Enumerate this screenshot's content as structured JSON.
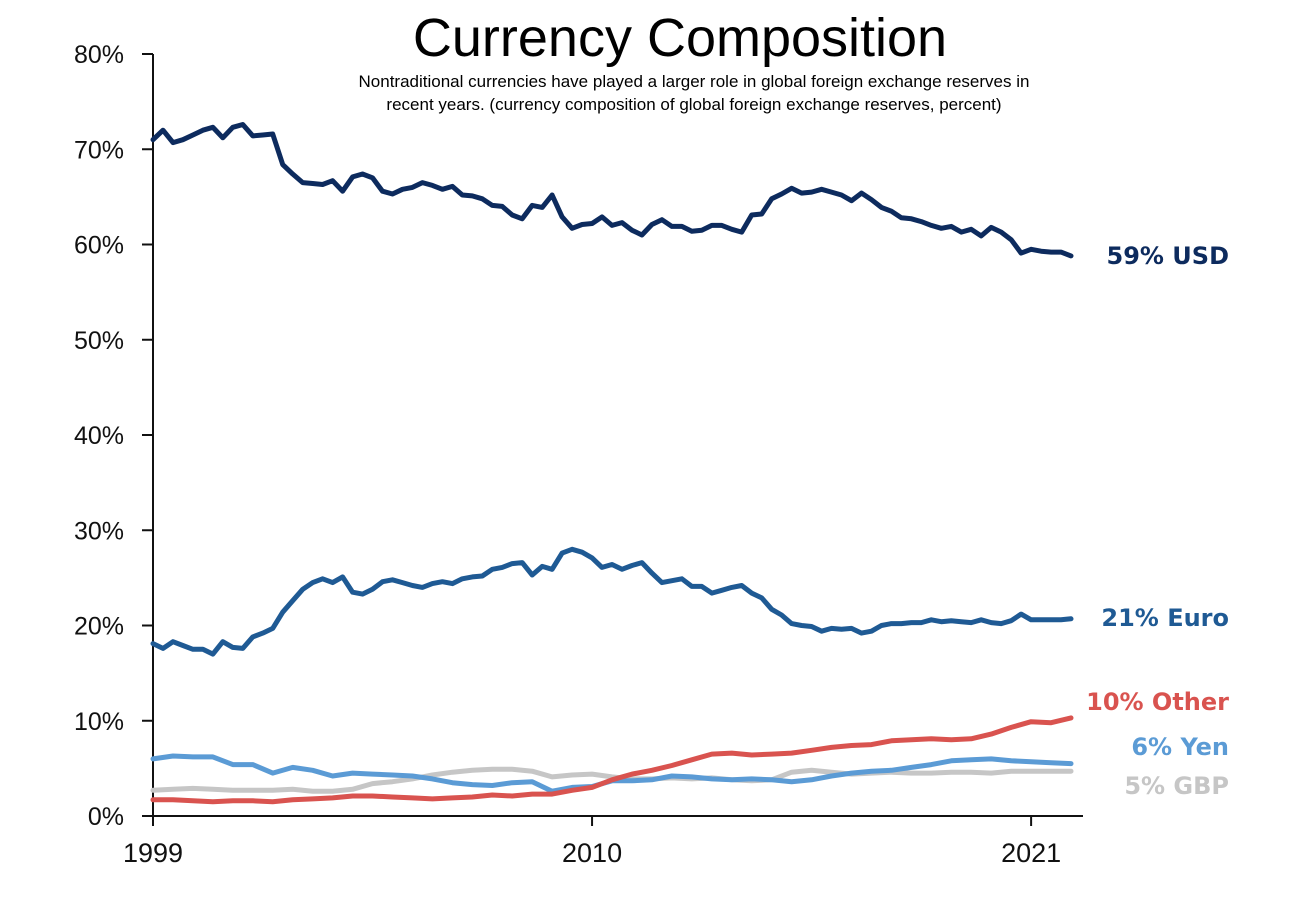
{
  "chart_data": {
    "type": "line",
    "title": "Currency Composition",
    "subtitle": [
      "Nontraditional currencies have played a larger role in global foreign exchange reserves in",
      "recent years. (currency composition of global foreign exchange reserves, percent)"
    ],
    "xlim": [
      1999,
      2022.3
    ],
    "ylim": [
      0,
      80
    ],
    "y_ticks": [
      0,
      10,
      20,
      30,
      40,
      50,
      60,
      70,
      80
    ],
    "y_tick_labels": [
      "0%",
      "10%",
      "20%",
      "30%",
      "40%",
      "50%",
      "60%",
      "70%",
      "80%"
    ],
    "x_ticks": [
      1999,
      2010,
      2021
    ],
    "x_tick_labels": [
      "1999",
      "2010",
      "2021"
    ],
    "grid": false,
    "series": [
      {
        "key": "usd",
        "end_label": "59% USD",
        "color": "#0d2b5e",
        "x": [
          1999.0,
          1999.25,
          1999.5,
          1999.75,
          2000.0,
          2000.25,
          2000.5,
          2000.75,
          2001.0,
          2001.25,
          2001.5,
          2001.75,
          2002.0,
          2002.25,
          2002.5,
          2002.75,
          2003.0,
          2003.25,
          2003.5,
          2003.75,
          2004.0,
          2004.25,
          2004.5,
          2004.75,
          2005.0,
          2005.25,
          2005.5,
          2005.75,
          2006.0,
          2006.25,
          2006.5,
          2006.75,
          2007.0,
          2007.25,
          2007.5,
          2007.75,
          2008.0,
          2008.25,
          2008.5,
          2008.75,
          2009.0,
          2009.25,
          2009.5,
          2009.75,
          2010.0,
          2010.25,
          2010.5,
          2010.75,
          2011.0,
          2011.25,
          2011.5,
          2011.75,
          2012.0,
          2012.25,
          2012.5,
          2012.75,
          2013.0,
          2013.25,
          2013.5,
          2013.75,
          2014.0,
          2014.25,
          2014.5,
          2014.75,
          2015.0,
          2015.25,
          2015.5,
          2015.75,
          2016.0,
          2016.25,
          2016.5,
          2016.75,
          2017.0,
          2017.25,
          2017.5,
          2017.75,
          2018.0,
          2018.25,
          2018.5,
          2018.75,
          2019.0,
          2019.25,
          2019.5,
          2019.75,
          2020.0,
          2020.25,
          2020.5,
          2020.75,
          2021.0,
          2021.25,
          2021.5,
          2021.75,
          2022.0
        ],
        "y": [
          71.0,
          72.0,
          70.7,
          71.0,
          71.5,
          72.0,
          72.3,
          71.2,
          72.3,
          72.6,
          71.4,
          71.5,
          71.6,
          68.4,
          67.4,
          66.5,
          66.4,
          66.3,
          66.7,
          65.6,
          67.1,
          67.4,
          67.0,
          65.6,
          65.3,
          65.8,
          66.0,
          66.5,
          66.2,
          65.8,
          66.1,
          65.2,
          65.1,
          64.8,
          64.1,
          64.0,
          63.1,
          62.7,
          64.1,
          63.9,
          65.2,
          62.9,
          61.7,
          62.1,
          62.2,
          62.9,
          62.0,
          62.3,
          61.5,
          61.0,
          62.1,
          62.6,
          61.9,
          61.9,
          61.4,
          61.5,
          62.0,
          62.0,
          61.6,
          61.3,
          63.1,
          63.2,
          64.8,
          65.3,
          65.9,
          65.4,
          65.5,
          65.8,
          65.5,
          65.2,
          64.6,
          65.4,
          64.7,
          63.9,
          63.5,
          62.8,
          62.7,
          62.4,
          62.0,
          61.7,
          61.9,
          61.3,
          61.6,
          60.9,
          61.8,
          61.3,
          60.5,
          59.1,
          59.5,
          59.3,
          59.2,
          59.2,
          58.8
        ]
      },
      {
        "key": "euro",
        "end_label": "21% Euro",
        "color": "#1f5a94",
        "x": [
          1999.0,
          1999.25,
          1999.5,
          1999.75,
          2000.0,
          2000.25,
          2000.5,
          2000.75,
          2001.0,
          2001.25,
          2001.5,
          2001.75,
          2002.0,
          2002.25,
          2002.5,
          2002.75,
          2003.0,
          2003.25,
          2003.5,
          2003.75,
          2004.0,
          2004.25,
          2004.5,
          2004.75,
          2005.0,
          2005.25,
          2005.5,
          2005.75,
          2006.0,
          2006.25,
          2006.5,
          2006.75,
          2007.0,
          2007.25,
          2007.5,
          2007.75,
          2008.0,
          2008.25,
          2008.5,
          2008.75,
          2009.0,
          2009.25,
          2009.5,
          2009.75,
          2010.0,
          2010.25,
          2010.5,
          2010.75,
          2011.0,
          2011.25,
          2011.5,
          2011.75,
          2012.0,
          2012.25,
          2012.5,
          2012.75,
          2013.0,
          2013.25,
          2013.5,
          2013.75,
          2014.0,
          2014.25,
          2014.5,
          2014.75,
          2015.0,
          2015.25,
          2015.5,
          2015.75,
          2016.0,
          2016.25,
          2016.5,
          2016.75,
          2017.0,
          2017.25,
          2017.5,
          2017.75,
          2018.0,
          2018.25,
          2018.5,
          2018.75,
          2019.0,
          2019.25,
          2019.5,
          2019.75,
          2020.0,
          2020.25,
          2020.5,
          2020.75,
          2021.0,
          2021.25,
          2021.5,
          2021.75,
          2022.0
        ],
        "y": [
          18.1,
          17.6,
          18.3,
          17.9,
          17.5,
          17.5,
          17.0,
          18.3,
          17.7,
          17.6,
          18.8,
          19.2,
          19.7,
          21.4,
          22.6,
          23.8,
          24.5,
          24.9,
          24.5,
          25.1,
          23.5,
          23.3,
          23.8,
          24.6,
          24.8,
          24.5,
          24.2,
          24.0,
          24.4,
          24.6,
          24.4,
          24.9,
          25.1,
          25.2,
          25.9,
          26.1,
          26.5,
          26.6,
          25.3,
          26.2,
          25.9,
          27.6,
          28.0,
          27.7,
          27.1,
          26.1,
          26.4,
          25.9,
          26.3,
          26.6,
          25.5,
          24.5,
          24.7,
          24.9,
          24.1,
          24.1,
          23.4,
          23.7,
          24.0,
          24.2,
          23.4,
          22.9,
          21.7,
          21.1,
          20.2,
          20.0,
          19.9,
          19.4,
          19.7,
          19.6,
          19.7,
          19.2,
          19.4,
          20.0,
          20.2,
          20.2,
          20.3,
          20.3,
          20.6,
          20.4,
          20.5,
          20.4,
          20.3,
          20.6,
          20.3,
          20.2,
          20.5,
          21.2,
          20.6,
          20.6,
          20.6,
          20.6,
          20.7
        ]
      },
      {
        "key": "other",
        "end_label": "10% Other",
        "color": "#d9534f",
        "x": [
          1999.0,
          1999.5,
          2000.0,
          2000.5,
          2001.0,
          2001.5,
          2002.0,
          2002.5,
          2003.0,
          2003.5,
          2004.0,
          2004.5,
          2005.0,
          2005.5,
          2006.0,
          2006.5,
          2007.0,
          2007.5,
          2008.0,
          2008.5,
          2009.0,
          2009.5,
          2010.0,
          2010.5,
          2011.0,
          2011.5,
          2012.0,
          2012.5,
          2013.0,
          2013.5,
          2014.0,
          2014.5,
          2015.0,
          2015.5,
          2016.0,
          2016.5,
          2017.0,
          2017.5,
          2018.0,
          2018.5,
          2019.0,
          2019.5,
          2020.0,
          2020.5,
          2021.0,
          2021.5,
          2022.0
        ],
        "y": [
          1.7,
          1.7,
          1.6,
          1.5,
          1.6,
          1.6,
          1.5,
          1.7,
          1.8,
          1.9,
          2.1,
          2.1,
          2.0,
          1.9,
          1.8,
          1.9,
          2.0,
          2.2,
          2.1,
          2.3,
          2.3,
          2.7,
          3.0,
          3.8,
          4.4,
          4.8,
          5.3,
          5.9,
          6.5,
          6.6,
          6.4,
          6.5,
          6.6,
          6.9,
          7.2,
          7.4,
          7.5,
          7.9,
          8.0,
          8.1,
          8.0,
          8.1,
          8.6,
          9.3,
          9.9,
          9.8,
          10.3
        ]
      },
      {
        "key": "yen",
        "end_label": "6% Yen",
        "color": "#5b9bd5",
        "x": [
          1999.0,
          1999.5,
          2000.0,
          2000.5,
          2001.0,
          2001.5,
          2002.0,
          2002.5,
          2003.0,
          2003.5,
          2004.0,
          2004.5,
          2005.0,
          2005.5,
          2006.0,
          2006.5,
          2007.0,
          2007.5,
          2008.0,
          2008.5,
          2009.0,
          2009.5,
          2010.0,
          2010.5,
          2011.0,
          2011.5,
          2012.0,
          2012.5,
          2013.0,
          2013.5,
          2014.0,
          2014.5,
          2015.0,
          2015.5,
          2016.0,
          2016.5,
          2017.0,
          2017.5,
          2018.0,
          2018.5,
          2019.0,
          2019.5,
          2020.0,
          2020.5,
          2021.0,
          2021.5,
          2022.0
        ],
        "y": [
          6.0,
          6.3,
          6.2,
          6.2,
          5.4,
          5.4,
          4.5,
          5.1,
          4.8,
          4.2,
          4.5,
          4.4,
          4.3,
          4.2,
          3.9,
          3.5,
          3.3,
          3.2,
          3.5,
          3.6,
          2.6,
          3.0,
          3.1,
          3.7,
          3.7,
          3.8,
          4.2,
          4.1,
          3.9,
          3.8,
          3.9,
          3.8,
          3.6,
          3.8,
          4.2,
          4.5,
          4.7,
          4.8,
          5.1,
          5.4,
          5.8,
          5.9,
          6.0,
          5.8,
          5.7,
          5.6,
          5.5
        ]
      },
      {
        "key": "gbp",
        "end_label": "5% GBP",
        "color": "#c6c6c6",
        "x": [
          1999.0,
          1999.5,
          2000.0,
          2000.5,
          2001.0,
          2001.5,
          2002.0,
          2002.5,
          2003.0,
          2003.5,
          2004.0,
          2004.5,
          2005.0,
          2005.5,
          2006.0,
          2006.5,
          2007.0,
          2007.5,
          2008.0,
          2008.5,
          2009.0,
          2009.5,
          2010.0,
          2010.5,
          2011.0,
          2011.5,
          2012.0,
          2012.5,
          2013.0,
          2013.5,
          2014.0,
          2014.5,
          2015.0,
          2015.5,
          2016.0,
          2016.5,
          2017.0,
          2017.5,
          2018.0,
          2018.5,
          2019.0,
          2019.5,
          2020.0,
          2020.5,
          2021.0,
          2021.5,
          2022.0
        ],
        "y": [
          2.7,
          2.8,
          2.9,
          2.8,
          2.7,
          2.7,
          2.7,
          2.8,
          2.6,
          2.6,
          2.8,
          3.4,
          3.6,
          3.9,
          4.3,
          4.6,
          4.8,
          4.9,
          4.9,
          4.7,
          4.1,
          4.3,
          4.4,
          4.1,
          3.9,
          3.9,
          4.0,
          3.9,
          4.0,
          3.8,
          3.7,
          3.8,
          4.6,
          4.8,
          4.6,
          4.4,
          4.5,
          4.6,
          4.5,
          4.5,
          4.6,
          4.6,
          4.5,
          4.7,
          4.7,
          4.7,
          4.7
        ]
      }
    ]
  }
}
